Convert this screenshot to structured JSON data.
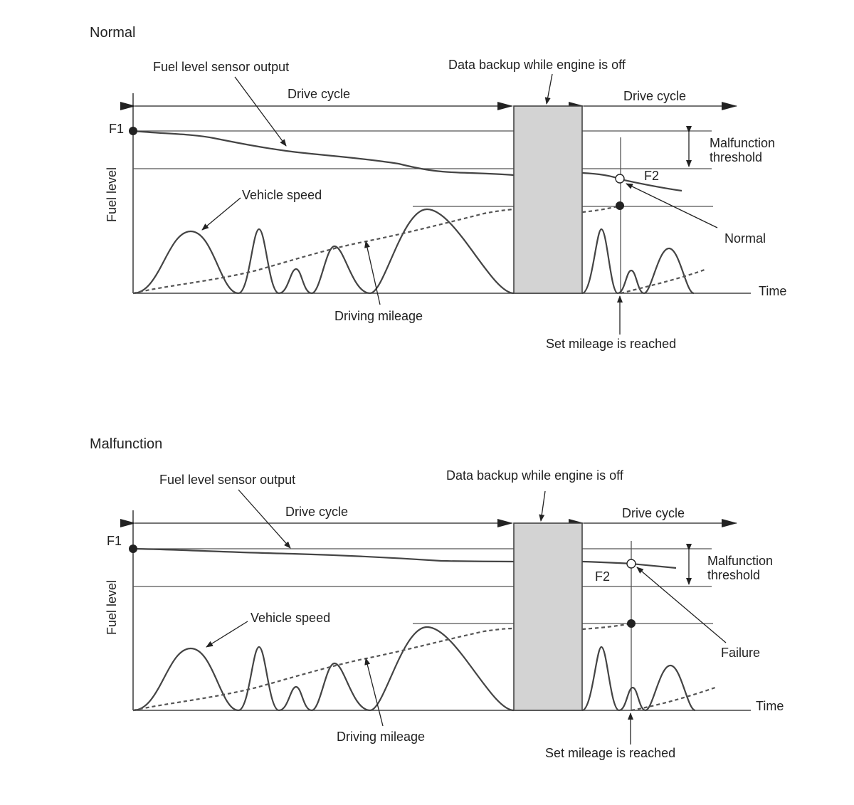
{
  "panels": [
    {
      "title": "Normal",
      "labels": {
        "sensor_output": "Fuel level sensor output",
        "backup": "Data backup while engine is off",
        "drive_cycle_1": "Drive cycle",
        "drive_cycle_2": "Drive cycle",
        "f1": "F1",
        "f2": "F2",
        "fuel_level": "Fuel level",
        "threshold_line1": "Malfunction",
        "threshold_line2": "threshold",
        "vehicle_speed": "Vehicle speed",
        "driving_mileage": "Driving mileage",
        "result": "Normal",
        "time": "Time",
        "set_mileage": "Set mileage is reached"
      }
    },
    {
      "title": "Malfunction",
      "labels": {
        "sensor_output": "Fuel level sensor output",
        "backup": "Data backup while engine is off",
        "drive_cycle_1": "Drive cycle",
        "drive_cycle_2": "Drive cycle",
        "f1": "F1",
        "f2": "F2",
        "fuel_level": "Fuel level",
        "threshold_line1": "Malfunction",
        "threshold_line2": "threshold",
        "vehicle_speed": "Vehicle speed",
        "driving_mileage": "Driving mileage",
        "result": "Failure",
        "time": "Time",
        "set_mileage": "Set mileage is reached"
      }
    }
  ],
  "colors": {
    "line": "#444444",
    "backup_box_fill": "#d3d3d3",
    "text": "#222222"
  }
}
